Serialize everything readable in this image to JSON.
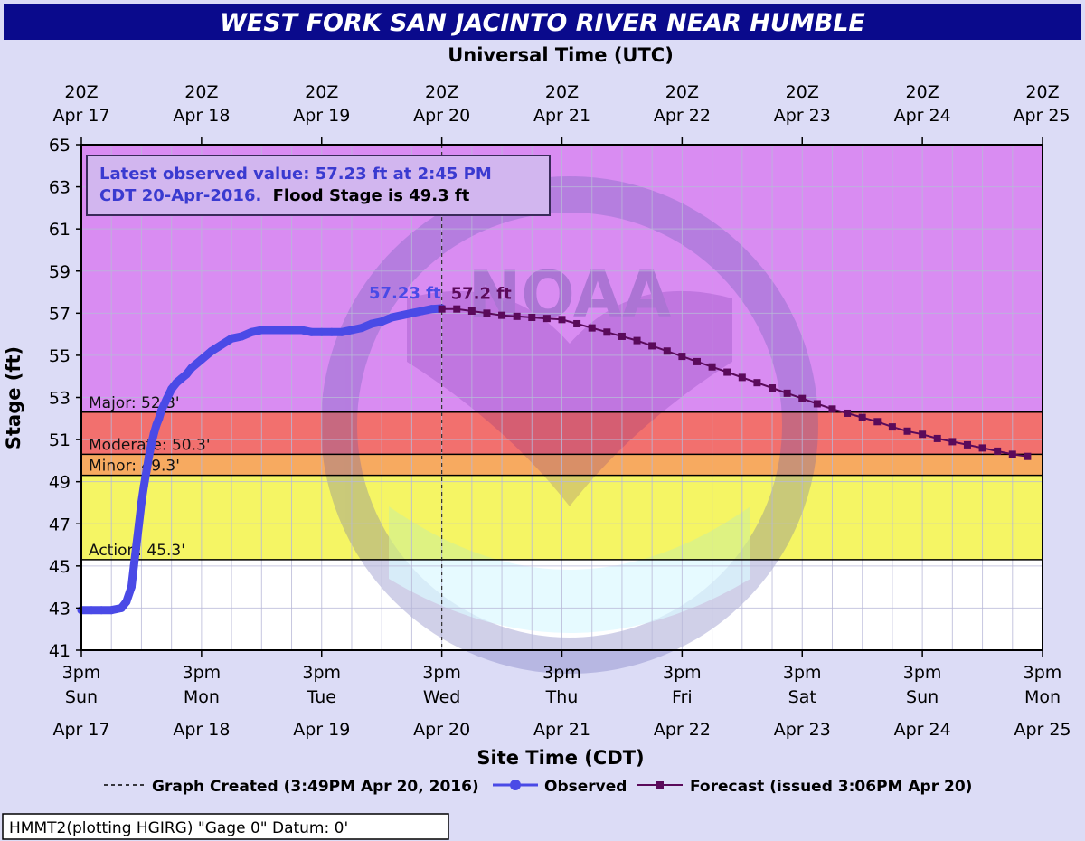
{
  "title": "WEST FORK SAN JACINTO RIVER NEAR HUMBLE",
  "colors": {
    "background": "#dcdcf6",
    "title_bar": "#0a0a8c",
    "observed": "#4a4ae6",
    "forecast": "#5a0a5a",
    "major_zone": "#d98cf2",
    "moderate_zone": "#f2706e",
    "minor_zone": "#f7aa60",
    "action_zone": "#f5f564",
    "normal_zone": "#ffffff",
    "info_text": "#3a3ad0"
  },
  "footer": {
    "info": "HMMT2(plotting HGIRG) \"Gage 0\" Datum: 0'"
  },
  "chart_data": {
    "type": "line",
    "title": "WEST FORK SAN JACINTO RIVER NEAR HUMBLE",
    "xlabel": "Site Time (CDT)",
    "xlabel_top": "Universal Time (UTC)",
    "ylabel": "Stage (ft)",
    "ylim": [
      41,
      65
    ],
    "xlim": [
      0,
      192
    ],
    "x_unit": "hours since 3pm CDT Sun Apr 17",
    "yticks": [
      41,
      43,
      45,
      47,
      49,
      51,
      53,
      55,
      57,
      59,
      61,
      63,
      65
    ],
    "xticks_bottom": [
      {
        "x": 0,
        "line1": "3pm",
        "line2": "Sun",
        "line3": "Apr 17"
      },
      {
        "x": 24,
        "line1": "3pm",
        "line2": "Mon",
        "line3": "Apr 18"
      },
      {
        "x": 48,
        "line1": "3pm",
        "line2": "Tue",
        "line3": "Apr 19"
      },
      {
        "x": 72,
        "line1": "3pm",
        "line2": "Wed",
        "line3": "Apr 20"
      },
      {
        "x": 96,
        "line1": "3pm",
        "line2": "Thu",
        "line3": "Apr 21"
      },
      {
        "x": 120,
        "line1": "3pm",
        "line2": "Fri",
        "line3": "Apr 22"
      },
      {
        "x": 144,
        "line1": "3pm",
        "line2": "Sat",
        "line3": "Apr 23"
      },
      {
        "x": 168,
        "line1": "3pm",
        "line2": "Sun",
        "line3": "Apr 24"
      },
      {
        "x": 192,
        "line1": "3pm",
        "line2": "Mon",
        "line3": "Apr 25"
      }
    ],
    "xticks_top": [
      {
        "x": 0,
        "line1": "20Z",
        "line2": "Apr 17"
      },
      {
        "x": 24,
        "line1": "20Z",
        "line2": "Apr 18"
      },
      {
        "x": 48,
        "line1": "20Z",
        "line2": "Apr 19"
      },
      {
        "x": 72,
        "line1": "20Z",
        "line2": "Apr 20"
      },
      {
        "x": 96,
        "line1": "20Z",
        "line2": "Apr 21"
      },
      {
        "x": 120,
        "line1": "20Z",
        "line2": "Apr 22"
      },
      {
        "x": 144,
        "line1": "20Z",
        "line2": "Apr 23"
      },
      {
        "x": 168,
        "line1": "20Z",
        "line2": "Apr 24"
      },
      {
        "x": 192,
        "line1": "20Z",
        "line2": "Apr 25"
      }
    ],
    "grid": true,
    "flood_categories": [
      {
        "name": "Major",
        "stage": 52.3,
        "label": "Major: 52.3'"
      },
      {
        "name": "Moderate",
        "stage": 50.3,
        "label": "Moderate: 50.3'"
      },
      {
        "name": "Minor",
        "stage": 49.3,
        "label": "Minor: 49.3'"
      },
      {
        "name": "Action",
        "stage": 45.3,
        "label": "Action: 45.3'"
      }
    ],
    "info_box": {
      "line1": "Latest observed value: 57.23 ft at 2:45 PM",
      "line2_a": "CDT 20-Apr-2016.",
      "line2_b": "Flood Stage is 49.3 ft"
    },
    "graph_created_x": 72,
    "series": [
      {
        "name": "Observed",
        "peak_label": "57.23 ft",
        "x": [
          0,
          2,
          4,
          6,
          8,
          9,
          10,
          10.5,
          11,
          11.5,
          12,
          12.5,
          13,
          13.5,
          14,
          14.5,
          15,
          15.5,
          16,
          17,
          18,
          19,
          20,
          21,
          22,
          24,
          26,
          28,
          30,
          32,
          34,
          36,
          38,
          40,
          42,
          44,
          46,
          48,
          50,
          52,
          54,
          56,
          58,
          60,
          62,
          64,
          66,
          68,
          70,
          72
        ],
        "values": [
          42.9,
          42.9,
          42.9,
          42.9,
          43.0,
          43.3,
          44.0,
          45.0,
          46.0,
          47.0,
          48.0,
          48.8,
          49.5,
          50.2,
          50.8,
          51.3,
          51.7,
          52.0,
          52.4,
          52.9,
          53.4,
          53.7,
          53.9,
          54.1,
          54.4,
          54.8,
          55.2,
          55.5,
          55.8,
          55.9,
          56.1,
          56.2,
          56.2,
          56.2,
          56.2,
          56.2,
          56.1,
          56.1,
          56.1,
          56.1,
          56.2,
          56.3,
          56.5,
          56.6,
          56.8,
          56.9,
          57.0,
          57.1,
          57.2,
          57.23
        ]
      },
      {
        "name": "Forecast (issued 3:06PM Apr 20)",
        "start_label": "57.2 ft",
        "x": [
          72,
          75,
          78,
          81,
          84,
          87,
          90,
          93,
          96,
          99,
          102,
          105,
          108,
          111,
          114,
          117,
          120,
          123,
          126,
          129,
          132,
          135,
          138,
          141,
          144,
          147,
          150,
          153,
          156,
          159,
          162,
          165,
          168,
          171,
          174,
          177,
          180,
          183,
          186,
          189
        ],
        "values": [
          57.2,
          57.2,
          57.1,
          57.0,
          56.9,
          56.85,
          56.8,
          56.75,
          56.7,
          56.5,
          56.3,
          56.1,
          55.9,
          55.7,
          55.45,
          55.2,
          54.95,
          54.7,
          54.45,
          54.2,
          53.95,
          53.7,
          53.45,
          53.2,
          52.95,
          52.7,
          52.45,
          52.25,
          52.05,
          51.85,
          51.6,
          51.4,
          51.25,
          51.05,
          50.9,
          50.75,
          50.6,
          50.45,
          50.3,
          50.2
        ]
      }
    ],
    "legend": {
      "placement": "bottom",
      "graph_created": "Graph Created (3:49PM Apr 20, 2016)",
      "observed": "Observed",
      "forecast": "Forecast (issued 3:06PM Apr 20)"
    }
  }
}
